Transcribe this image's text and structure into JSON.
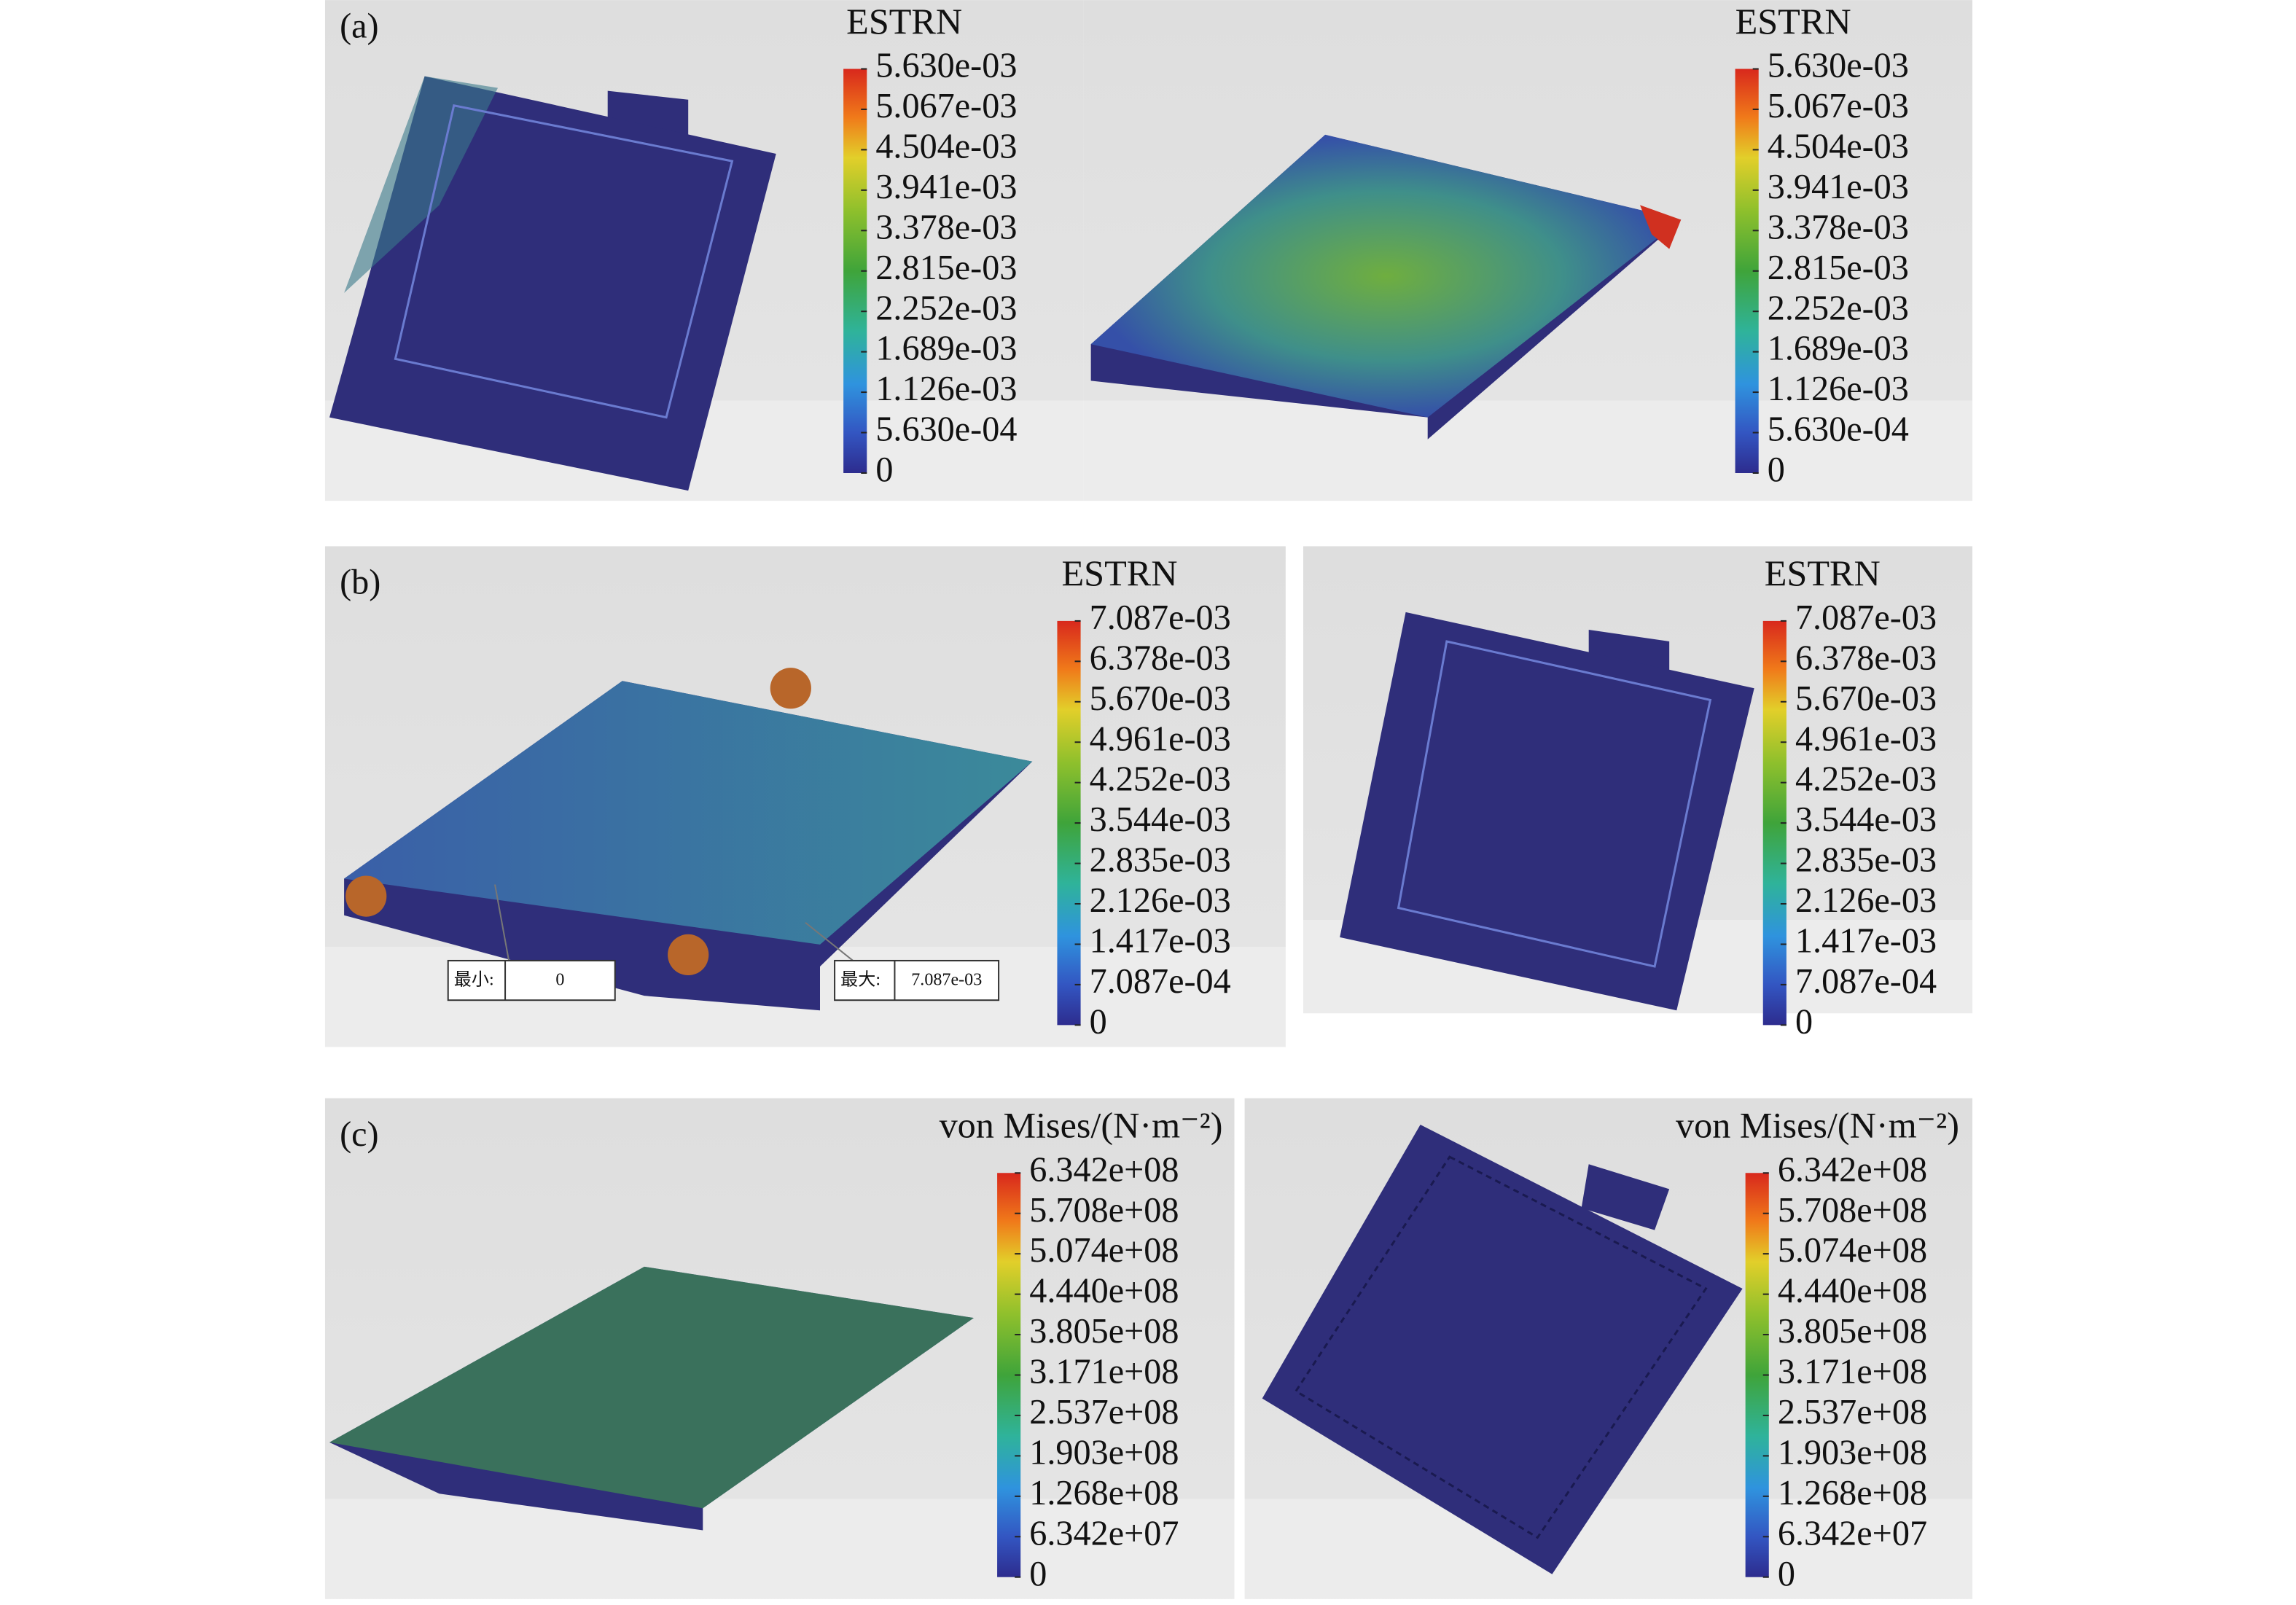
{
  "panels": [
    {
      "label": "(a)",
      "views": [
        {
          "legend": {
            "title": "ESTRN",
            "ticks": [
              "5.630e-03",
              "5.067e-03",
              "4.504e-03",
              "3.941e-03",
              "3.378e-03",
              "2.815e-03",
              "2.252e-03",
              "1.689e-03",
              "1.126e-03",
              "5.630e-04",
              "0"
            ]
          }
        },
        {
          "legend": {
            "title": "ESTRN",
            "ticks": [
              "5.630e-03",
              "5.067e-03",
              "4.504e-03",
              "3.941e-03",
              "3.378e-03",
              "2.815e-03",
              "2.252e-03",
              "1.689e-03",
              "1.126e-03",
              "5.630e-04",
              "0"
            ]
          }
        }
      ]
    },
    {
      "label": "(b)",
      "views": [
        {
          "legend": {
            "title": "ESTRN",
            "ticks": [
              "7.087e-03",
              "6.378e-03",
              "5.670e-03",
              "4.961e-03",
              "4.252e-03",
              "3.544e-03",
              "2.835e-03",
              "2.126e-03",
              "1.417e-03",
              "7.087e-04",
              "0"
            ]
          },
          "callouts": [
            {
              "label": "最小:",
              "value": "0"
            },
            {
              "label": "最大:",
              "value": "7.087e-03"
            }
          ]
        },
        {
          "legend": {
            "title": "ESTRN",
            "ticks": [
              "7.087e-03",
              "6.378e-03",
              "5.670e-03",
              "4.961e-03",
              "4.252e-03",
              "3.544e-03",
              "2.835e-03",
              "2.126e-03",
              "1.417e-03",
              "7.087e-04",
              "0"
            ]
          }
        }
      ]
    },
    {
      "label": "(c)",
      "views": [
        {
          "legend": {
            "title": "von Mises/(N·m⁻²)",
            "ticks": [
              "6.342e+08",
              "5.708e+08",
              "5.074e+08",
              "4.440e+08",
              "3.805e+08",
              "3.171e+08",
              "2.537e+08",
              "1.903e+08",
              "1.268e+08",
              "6.342e+07",
              "0"
            ]
          }
        },
        {
          "legend": {
            "title": "von Mises/(N·m⁻²)",
            "ticks": [
              "6.342e+08",
              "5.708e+08",
              "5.074e+08",
              "4.440e+08",
              "3.805e+08",
              "3.171e+08",
              "2.537e+08",
              "1.903e+08",
              "1.268e+08",
              "6.342e+07",
              "0"
            ]
          }
        }
      ]
    }
  ]
}
